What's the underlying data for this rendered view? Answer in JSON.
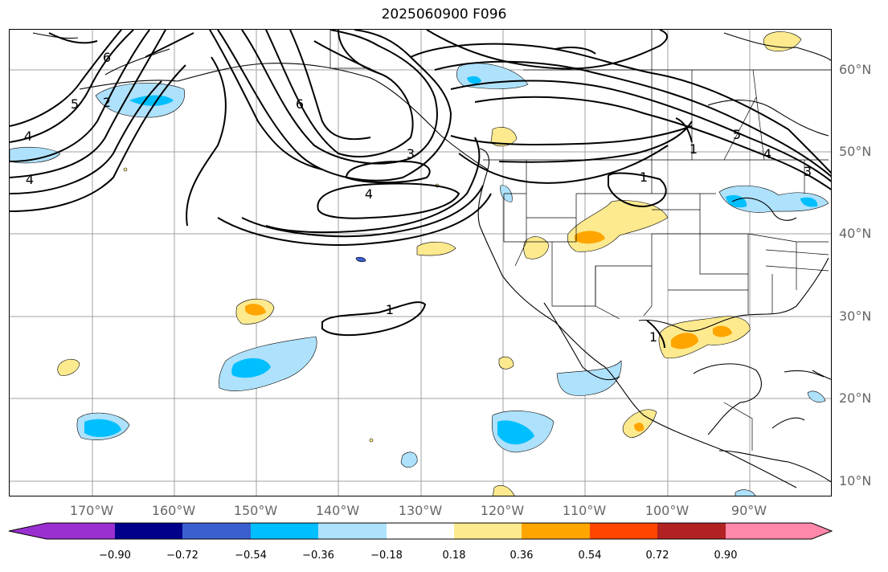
{
  "title": "2025060900 F096",
  "lat_labels": [
    "60°N",
    "50°N",
    "40°N",
    "30°N",
    "20°N",
    "10°N"
  ],
  "lon_labels": [
    "170°W",
    "160°W",
    "150°W",
    "140°W",
    "130°W",
    "120°W",
    "110°W",
    "100°W",
    "90°W"
  ],
  "colorbar": {
    "ticks": [
      "−0.90",
      "−0.72",
      "−0.54",
      "−0.36",
      "−0.18",
      "0.18",
      "0.36",
      "0.54",
      "0.72",
      "0.90"
    ],
    "colors": [
      "#9b30d0",
      "#00008b",
      "#3b5fcf",
      "#00bfff",
      "#aee1fb",
      "#ffffff",
      "#fdea8e",
      "#ffa500",
      "#ff4500",
      "#b22222",
      "#ff88aa"
    ]
  },
  "contour_labels": {
    "c1": "6",
    "c2": "5",
    "c3": "2",
    "c4": "4",
    "c5": "4",
    "c6": "6",
    "c7": "3",
    "c8": "4",
    "c9": "1",
    "c10": "1",
    "c11": "1",
    "c12": "5",
    "c13": "4",
    "c14": "3",
    "c15": "1"
  }
}
